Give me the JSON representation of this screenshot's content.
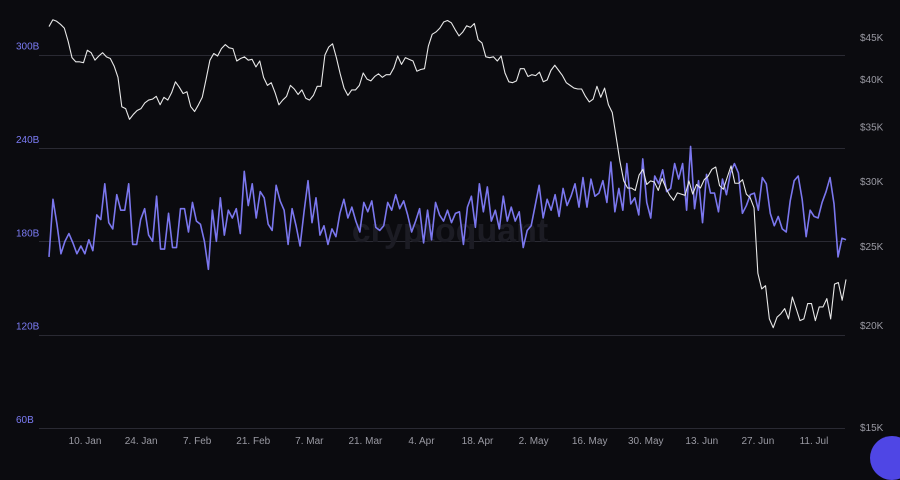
{
  "chart_data": {
    "type": "line",
    "watermark": "cryptoquant",
    "colors": {
      "background": "#0b0b0f",
      "grid": "#2a2a33",
      "left_axis_text": "#7c7cf5",
      "right_axis_text": "#9a9aa3",
      "x_axis_text": "#9a9aa3",
      "series_volume": "#7b77ee",
      "series_price": "#e8e8e8",
      "watermark": "#1c1c24"
    },
    "x_ticks": [
      "10. Jan",
      "24. Jan",
      "7. Feb",
      "21. Feb",
      "7. Mar",
      "21. Mar",
      "4. Apr",
      "18. Apr",
      "2. May",
      "16. May",
      "30. May",
      "13. Jun",
      "27. Jun",
      "11. Jul"
    ],
    "x_tick_days": [
      9,
      23,
      37,
      51,
      65,
      79,
      93,
      107,
      121,
      135,
      149,
      163,
      177,
      191
    ],
    "x_range_days": [
      0,
      199
    ],
    "left_axis": {
      "ticks": [
        "60B",
        "120B",
        "180B",
        "240B",
        "300B"
      ],
      "tick_values": [
        60,
        120,
        180,
        240,
        300
      ],
      "range": [
        60,
        330
      ]
    },
    "right_axis": {
      "ticks": [
        "$15K",
        "$20K",
        "$25K",
        "$30K",
        "$35K",
        "$40K",
        "$45K"
      ],
      "tick_values": [
        15000,
        20000,
        25000,
        30000,
        35000,
        40000,
        45000
      ],
      "scale": "log",
      "range": [
        15000,
        49000
      ]
    },
    "series": [
      {
        "axis": "left",
        "values": [
          170,
          207,
          191,
          172,
          180,
          185,
          179,
          172,
          177,
          172,
          181,
          174,
          197,
          194,
          217,
          192,
          188,
          210,
          200,
          200,
          217,
          178,
          178,
          194,
          201,
          184,
          180,
          209,
          175,
          175,
          198,
          176,
          176,
          201,
          201,
          186,
          205,
          193,
          191,
          180,
          162,
          200,
          180,
          208,
          184,
          200,
          195,
          201,
          185,
          225,
          203,
          217,
          195,
          212,
          208,
          191,
          187,
          216,
          206,
          200,
          178,
          201,
          190,
          177,
          199,
          219,
          192,
          208,
          184,
          190,
          178,
          188,
          183,
          198,
          207,
          195,
          202,
          193,
          186,
          205,
          199,
          206,
          189,
          187,
          190,
          205,
          200,
          210,
          201,
          206,
          197,
          186,
          193,
          201,
          179,
          200,
          181,
          205,
          197,
          193,
          200,
          192,
          198,
          199,
          178,
          202,
          209,
          189,
          217,
          199,
          215,
          193,
          200,
          188,
          209,
          193,
          202,
          193,
          199,
          176,
          187,
          190,
          203,
          216,
          195,
          207,
          200,
          210,
          196,
          214,
          203,
          209,
          217,
          202,
          221,
          202,
          220,
          209,
          211,
          219,
          205,
          231,
          199,
          214,
          200,
          230,
          204,
          208,
          197,
          233,
          205,
          195,
          222,
          217,
          226,
          212,
          214,
          230,
          220,
          230,
          200,
          241,
          201,
          219,
          192,
          223,
          211,
          211,
          199,
          220,
          210,
          224,
          230,
          224,
          198,
          203,
          210,
          211,
          200,
          221,
          217,
          198,
          190,
          196,
          188,
          186,
          206,
          219,
          222,
          207,
          183,
          200,
          196,
          195,
          205,
          212,
          221,
          204,
          170,
          182,
          181
        ],
        "note": "approx. 0.5-day samples (2 per day)"
      },
      {
        "axis": "right",
        "values": [
          46500,
          47400,
          47200,
          46800,
          46300,
          44600,
          42600,
          42100,
          42100,
          42000,
          43500,
          43200,
          42300,
          42800,
          43200,
          42700,
          42500,
          41600,
          40300,
          37100,
          36900,
          35800,
          36300,
          36700,
          36900,
          37500,
          37800,
          37900,
          38200,
          37300,
          38100,
          37800,
          38600,
          39800,
          39200,
          38500,
          38700,
          37100,
          36600,
          37300,
          38100,
          40100,
          42300,
          43100,
          42800,
          43700,
          44200,
          43800,
          43700,
          42200,
          42500,
          42700,
          42300,
          42400,
          41500,
          42200,
          40300,
          39400,
          39700,
          38600,
          37300,
          37800,
          38200,
          39400,
          39000,
          38400,
          38900,
          38000,
          37800,
          38300,
          39300,
          39300,
          42900,
          43900,
          44300,
          42600,
          40700,
          39100,
          38300,
          38900,
          38900,
          39400,
          40800,
          40100,
          39900,
          40400,
          40700,
          40300,
          40600,
          40600,
          41400,
          42800,
          41800,
          42600,
          42400,
          42200,
          41000,
          41200,
          41300,
          44000,
          45500,
          45800,
          46300,
          47100,
          47300,
          47000,
          46100,
          45300,
          45800,
          46600,
          46400,
          46900,
          44800,
          44400,
          42700,
          42600,
          42700,
          42200,
          42800,
          40800,
          39800,
          39700,
          39900,
          41300,
          41300,
          40400,
          40600,
          40500,
          40900,
          39800,
          40000,
          41100,
          41700,
          41100,
          40500,
          39700,
          39400,
          39100,
          39000,
          39000,
          38200,
          37600,
          37900,
          39300,
          38100,
          39100,
          37300,
          36500,
          34100,
          31800,
          30100,
          29500,
          29500,
          29300,
          30600,
          31100,
          29800,
          30100,
          30000,
          29300,
          30300,
          29500,
          28900,
          28500,
          29100,
          29000,
          28900,
          30100,
          29000,
          29800,
          29500,
          30200,
          30500,
          31100,
          31300,
          29700,
          29400,
          30400,
          31400,
          29900,
          29900,
          30200,
          29000,
          28700,
          27900,
          23200,
          22200,
          22400,
          20400,
          19900,
          20500,
          20700,
          21000,
          20400,
          21700,
          21000,
          20300,
          20400,
          21300,
          21300,
          20300,
          21100,
          21100,
          21600,
          20400,
          22500,
          22600,
          21500,
          22800
        ]
      }
    ]
  }
}
